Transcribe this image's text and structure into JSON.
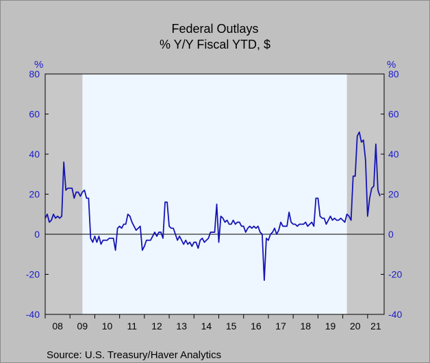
{
  "header": {
    "title": "Federal Outlays",
    "subtitle": "% Y/Y   Fiscal YTD, $"
  },
  "axis_unit_left": "%",
  "axis_unit_right": "%",
  "source": "Source:  U.S. Treasury/Haver Analytics",
  "colors": {
    "background": "#C0C0C0",
    "plot": "#EEF6FF",
    "recession": "#C8C8C8",
    "line": "#1414B4",
    "axis_text": "#1A1ACC"
  },
  "chart_data": {
    "type": "line",
    "title": "Federal Outlays",
    "subtitle": "% Y/Y   Fiscal YTD, $",
    "ylabel": "%",
    "ylim": [
      -40,
      80
    ],
    "yticks": [
      -40,
      -20,
      0,
      20,
      40,
      60,
      80
    ],
    "xlim": [
      2008.0,
      2021.6667
    ],
    "xtick_labels": [
      "08",
      "09",
      "10",
      "11",
      "12",
      "13",
      "14",
      "15",
      "16",
      "17",
      "18",
      "19",
      "20",
      "21"
    ],
    "grid": false,
    "zero_line": true,
    "recessions": [
      [
        2008.0,
        2009.5
      ],
      [
        2020.1667,
        2021.6667
      ]
    ],
    "series": [
      {
        "values": [
          [
            2008.0,
            8
          ],
          [
            2008.083,
            10
          ],
          [
            2008.167,
            6
          ],
          [
            2008.25,
            7
          ],
          [
            2008.333,
            10
          ],
          [
            2008.417,
            8
          ],
          [
            2008.5,
            9
          ],
          [
            2008.583,
            8
          ],
          [
            2008.667,
            9
          ],
          [
            2008.75,
            36
          ],
          [
            2008.833,
            22
          ],
          [
            2008.917,
            23
          ],
          [
            2009.0,
            23
          ],
          [
            2009.083,
            23
          ],
          [
            2009.167,
            18
          ],
          [
            2009.25,
            21
          ],
          [
            2009.333,
            21
          ],
          [
            2009.417,
            19
          ],
          [
            2009.5,
            21
          ],
          [
            2009.583,
            22
          ],
          [
            2009.667,
            18
          ],
          [
            2009.75,
            18
          ],
          [
            2009.833,
            -2
          ],
          [
            2009.917,
            -4
          ],
          [
            2010.0,
            -1
          ],
          [
            2010.083,
            -4
          ],
          [
            2010.167,
            -1
          ],
          [
            2010.25,
            -5
          ],
          [
            2010.333,
            -3
          ],
          [
            2010.417,
            -3
          ],
          [
            2010.5,
            -3
          ],
          [
            2010.583,
            -2
          ],
          [
            2010.667,
            -2
          ],
          [
            2010.75,
            -2
          ],
          [
            2010.833,
            -8
          ],
          [
            2010.917,
            3
          ],
          [
            2011.0,
            4
          ],
          [
            2011.083,
            3
          ],
          [
            2011.167,
            5
          ],
          [
            2011.25,
            5
          ],
          [
            2011.333,
            10
          ],
          [
            2011.417,
            9
          ],
          [
            2011.5,
            6
          ],
          [
            2011.583,
            4
          ],
          [
            2011.667,
            2
          ],
          [
            2011.75,
            3
          ],
          [
            2011.833,
            4
          ],
          [
            2011.917,
            -8
          ],
          [
            2012.0,
            -6
          ],
          [
            2012.083,
            -3
          ],
          [
            2012.167,
            -3
          ],
          [
            2012.25,
            -3
          ],
          [
            2012.333,
            -1
          ],
          [
            2012.417,
            1
          ],
          [
            2012.5,
            -1
          ],
          [
            2012.583,
            1
          ],
          [
            2012.667,
            1
          ],
          [
            2012.75,
            -2
          ],
          [
            2012.833,
            16
          ],
          [
            2012.917,
            16
          ],
          [
            2013.0,
            4
          ],
          [
            2013.083,
            3
          ],
          [
            2013.167,
            3
          ],
          [
            2013.25,
            0
          ],
          [
            2013.333,
            -3
          ],
          [
            2013.417,
            -1
          ],
          [
            2013.5,
            -3
          ],
          [
            2013.583,
            -5
          ],
          [
            2013.667,
            -3
          ],
          [
            2013.75,
            -5
          ],
          [
            2013.833,
            -4
          ],
          [
            2013.917,
            -6
          ],
          [
            2014.0,
            -4
          ],
          [
            2014.083,
            -4
          ],
          [
            2014.167,
            -7
          ],
          [
            2014.25,
            -3
          ],
          [
            2014.333,
            -2
          ],
          [
            2014.417,
            -4
          ],
          [
            2014.5,
            -3
          ],
          [
            2014.583,
            -2
          ],
          [
            2014.667,
            1
          ],
          [
            2014.75,
            1
          ],
          [
            2014.833,
            1
          ],
          [
            2014.917,
            15
          ],
          [
            2015.0,
            -4
          ],
          [
            2015.083,
            9
          ],
          [
            2015.167,
            8
          ],
          [
            2015.25,
            6
          ],
          [
            2015.333,
            7
          ],
          [
            2015.417,
            5
          ],
          [
            2015.5,
            5
          ],
          [
            2015.583,
            7
          ],
          [
            2015.667,
            5
          ],
          [
            2015.75,
            6
          ],
          [
            2015.833,
            6
          ],
          [
            2015.917,
            4
          ],
          [
            2016.0,
            4
          ],
          [
            2016.083,
            1
          ],
          [
            2016.167,
            3
          ],
          [
            2016.25,
            4
          ],
          [
            2016.333,
            3
          ],
          [
            2016.417,
            4
          ],
          [
            2016.5,
            3
          ],
          [
            2016.583,
            4
          ],
          [
            2016.667,
            1
          ],
          [
            2016.75,
            0
          ],
          [
            2016.833,
            -23
          ],
          [
            2016.917,
            -2
          ],
          [
            2017.0,
            -3
          ],
          [
            2017.083,
            0
          ],
          [
            2017.167,
            1
          ],
          [
            2017.25,
            3
          ],
          [
            2017.333,
            0
          ],
          [
            2017.417,
            2
          ],
          [
            2017.5,
            6
          ],
          [
            2017.583,
            4
          ],
          [
            2017.667,
            4
          ],
          [
            2017.75,
            4
          ],
          [
            2017.833,
            11
          ],
          [
            2017.917,
            6
          ],
          [
            2018.0,
            5
          ],
          [
            2018.083,
            5
          ],
          [
            2018.167,
            4
          ],
          [
            2018.25,
            5
          ],
          [
            2018.333,
            5
          ],
          [
            2018.417,
            5
          ],
          [
            2018.5,
            6
          ],
          [
            2018.583,
            4
          ],
          [
            2018.667,
            5
          ],
          [
            2018.75,
            6
          ],
          [
            2018.833,
            4
          ],
          [
            2018.917,
            18
          ],
          [
            2019.0,
            18
          ],
          [
            2019.083,
            9
          ],
          [
            2019.167,
            8
          ],
          [
            2019.25,
            8
          ],
          [
            2019.333,
            5
          ],
          [
            2019.417,
            7
          ],
          [
            2019.5,
            9
          ],
          [
            2019.583,
            7
          ],
          [
            2019.667,
            8
          ],
          [
            2019.75,
            7
          ],
          [
            2019.833,
            7
          ],
          [
            2019.917,
            8
          ],
          [
            2020.0,
            7
          ],
          [
            2020.083,
            6
          ],
          [
            2020.167,
            10
          ],
          [
            2020.25,
            9
          ],
          [
            2020.333,
            7
          ],
          [
            2020.417,
            29
          ],
          [
            2020.5,
            29
          ],
          [
            2020.583,
            49
          ],
          [
            2020.667,
            51
          ],
          [
            2020.75,
            46
          ],
          [
            2020.833,
            47
          ],
          [
            2020.917,
            37
          ],
          [
            2021.0,
            9
          ],
          [
            2021.083,
            18
          ],
          [
            2021.167,
            23
          ],
          [
            2021.25,
            24
          ],
          [
            2021.333,
            45
          ],
          [
            2021.417,
            22
          ],
          [
            2021.5,
            19
          ]
        ]
      }
    ]
  }
}
